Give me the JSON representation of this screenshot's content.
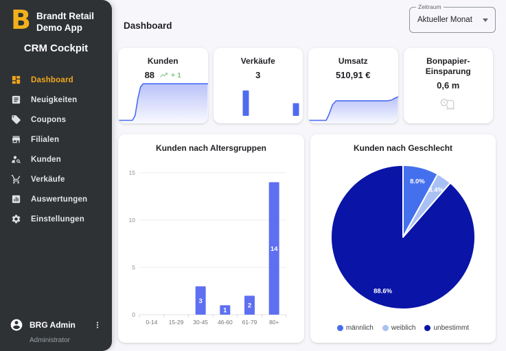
{
  "sidebar": {
    "logo_letter": "B",
    "app_name_line1": "Brandt Retail",
    "app_name_line2": "Demo App",
    "product_name": "CRM Cockpit",
    "items": [
      {
        "label": "Dashboard",
        "icon": "dashboard-icon",
        "active": true
      },
      {
        "label": "Neuigkeiten",
        "icon": "news-icon",
        "active": false
      },
      {
        "label": "Coupons",
        "icon": "coupon-tag-icon",
        "active": false
      },
      {
        "label": "Filialen",
        "icon": "store-icon",
        "active": false
      },
      {
        "label": "Kunden",
        "icon": "person-search-icon",
        "active": false
      },
      {
        "label": "Verkäufe",
        "icon": "cart-icon",
        "active": false
      },
      {
        "label": "Auswertungen",
        "icon": "analytics-icon",
        "active": false
      },
      {
        "label": "Einstellungen",
        "icon": "settings-icon",
        "active": false
      }
    ],
    "user": {
      "name": "BRG Admin",
      "role": "Administrator"
    }
  },
  "header": {
    "title": "Dashboard"
  },
  "period_filter": {
    "label": "Zeitraum",
    "value": "Aktueller Monat"
  },
  "kpis": {
    "kunden": {
      "title": "Kunden",
      "value": "88",
      "trend": "+ 1",
      "spark": [
        [
          0,
          0.06
        ],
        [
          0.16,
          0.06
        ],
        [
          0.19,
          0.18
        ],
        [
          0.22,
          0.6
        ],
        [
          0.25,
          0.9
        ],
        [
          0.28,
          0.98
        ],
        [
          1,
          0.98
        ]
      ]
    },
    "verkaeufe": {
      "title": "Verkäufe",
      "value": "3",
      "bars": [
        {
          "x": 0.36,
          "v": 2
        },
        {
          "x": 0.92,
          "v": 1
        }
      ],
      "bar_max": 2
    },
    "umsatz": {
      "title": "Umsatz",
      "value": "510,91 €",
      "spark": [
        [
          0,
          0.06
        ],
        [
          0.2,
          0.06
        ],
        [
          0.23,
          0.2
        ],
        [
          0.27,
          0.45
        ],
        [
          0.31,
          0.55
        ],
        [
          0.88,
          0.55
        ],
        [
          0.93,
          0.57
        ],
        [
          0.97,
          0.62
        ],
        [
          1,
          0.65
        ]
      ]
    },
    "bonpapier": {
      "title_line1": "Bonpapier-",
      "title_line2": "Einsparung",
      "value": "0,6 m",
      "icon": "receipt-roll-icon"
    }
  },
  "chart_data": [
    {
      "type": "bar",
      "title": "Kunden nach Altersgruppen",
      "categories": [
        "0-14",
        "15-29",
        "30-45",
        "46-60",
        "61-79",
        "80+"
      ],
      "values": [
        0,
        0,
        3,
        1,
        2,
        14
      ],
      "ylim": [
        0,
        15
      ],
      "yticks": [
        0,
        5,
        10,
        15
      ],
      "grid": true,
      "bar_color": "#5f6ff2",
      "value_label_color": "#ffffff"
    },
    {
      "type": "pie",
      "title": "Kunden nach Geschlecht",
      "labels": [
        "männlich",
        "weiblich",
        "unbestimmt"
      ],
      "values": [
        8.0,
        3.4,
        88.6
      ],
      "slice_labels": [
        "8.0%",
        "3.4%",
        "88.6%"
      ],
      "colors": [
        "#4470ee",
        "#a9c0f4",
        "#0a14a6"
      ],
      "legend_position": "bottom"
    }
  ],
  "colors": {
    "sidebar_bg": "#2f3235",
    "accent_gold": "#f0a81c",
    "chart_blue": "#5f6ff2",
    "spark_line": "#4a6af0",
    "trend_green": "#7cc47f",
    "pie_male": "#4470ee",
    "pie_female": "#a9c0f4",
    "pie_undetermined": "#0a14a6"
  }
}
